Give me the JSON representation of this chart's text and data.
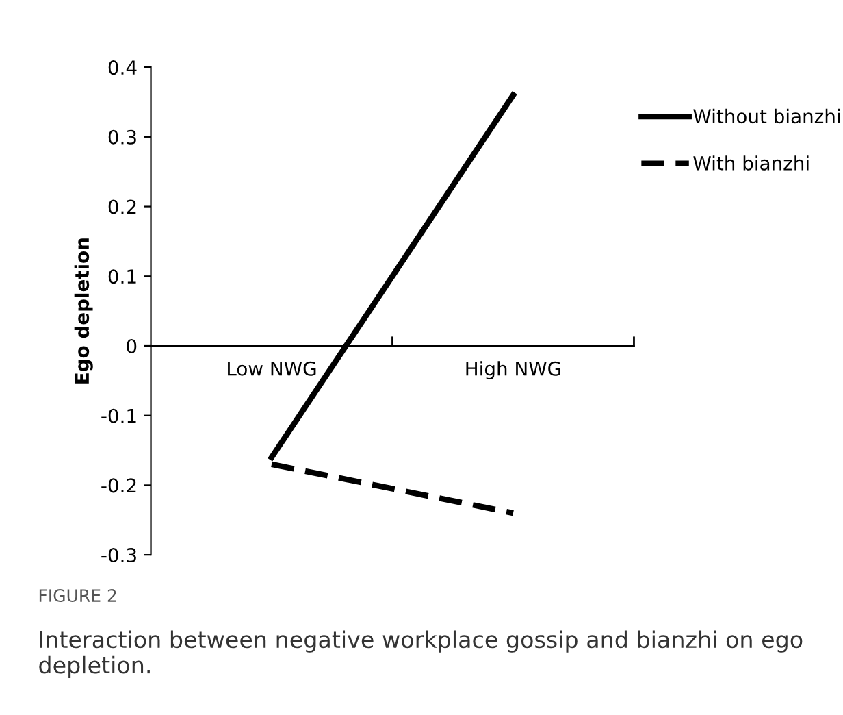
{
  "chart_data": {
    "type": "line",
    "ylabel": "Ego depletion",
    "categories": [
      "Low NWG",
      "High NWG"
    ],
    "series": [
      {
        "name": "Without bianzhi",
        "color": "#000000",
        "values": [
          -0.16,
          0.36
        ],
        "line_style": "solid"
      },
      {
        "name": "With bianzhi",
        "color": "#000000",
        "values": [
          -0.17,
          -0.24
        ],
        "line_style": "dashed"
      }
    ],
    "ylim": [
      -0.3,
      0.4
    ],
    "yticks": [
      {
        "value": 0.4,
        "label": "0.4"
      },
      {
        "value": 0.3,
        "label": "0.3"
      },
      {
        "value": 0.2,
        "label": "0.2"
      },
      {
        "value": 0.1,
        "label": "0.1"
      },
      {
        "value": 0,
        "label": "0"
      },
      {
        "value": -0.1,
        "label": "-0.1"
      },
      {
        "value": -0.2,
        "label": "-0.2"
      },
      {
        "value": -0.3,
        "label": "-0.3"
      }
    ],
    "legend": "right",
    "grid": false,
    "annotations": [
      "FIGURE 2",
      "Interaction between negative workplace gossip and bianzhi on ego depletion."
    ]
  }
}
